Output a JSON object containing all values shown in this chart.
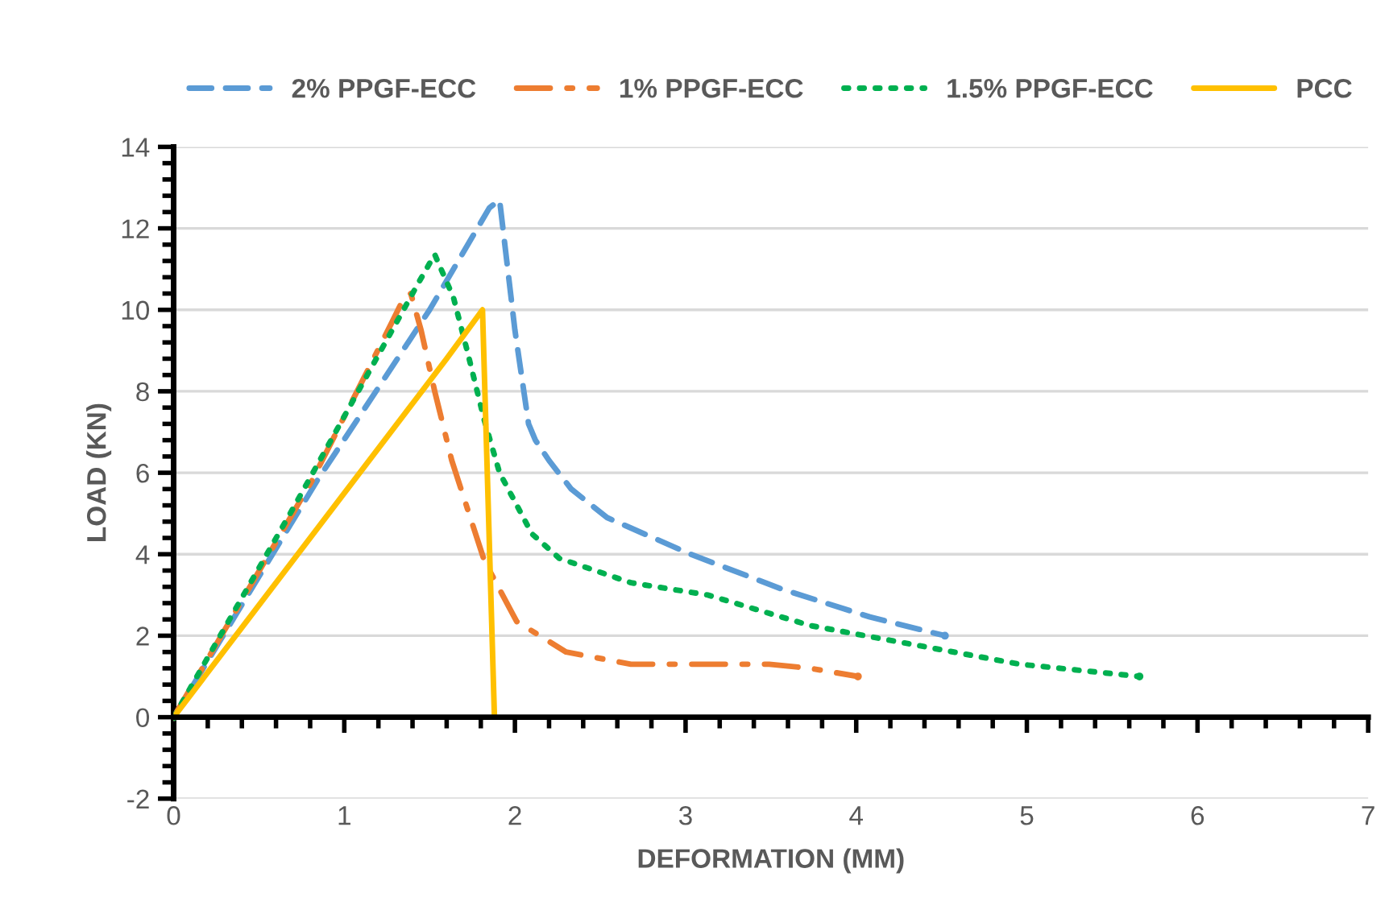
{
  "chart_data": {
    "type": "line",
    "xlabel": "DEFORMATION (MM)",
    "ylabel": "LOAD (KN)",
    "xlim": [
      0,
      7
    ],
    "xticks": [
      0,
      1,
      2,
      3,
      4,
      5,
      6,
      7
    ],
    "ylim": [
      -2,
      14
    ],
    "yticks": [
      -2,
      0,
      2,
      4,
      6,
      8,
      10,
      12,
      14
    ],
    "grid": "y",
    "legend": "top",
    "marker": "none",
    "series": [
      {
        "name": "2% PPGF-ECC",
        "color": "#5b9bd5",
        "line_style": "dashed",
        "x": [
          0,
          0.84,
          1.5,
          1.85,
          1.91,
          2.0,
          2.08,
          2.12,
          2.2,
          2.33,
          2.54,
          3.03,
          3.56,
          4.08,
          4.52
        ],
        "values": [
          0,
          5.8,
          10,
          12.5,
          12.7,
          9.5,
          7.2,
          6.8,
          6.3,
          5.6,
          4.9,
          4.0,
          3.15,
          2.46,
          2.0
        ]
      },
      {
        "name": "1% PPGF-ECC",
        "color": "#ed7d31",
        "line_style": "dashdot",
        "x": [
          0,
          0.81,
          1.28,
          1.35,
          1.39,
          1.45,
          1.53,
          1.63,
          1.82,
          2.01,
          2.3,
          2.68,
          3.07,
          3.49,
          3.73,
          4.01
        ],
        "values": [
          0,
          5.8,
          9.7,
          10.3,
          10.4,
          9.5,
          8.0,
          6.3,
          3.85,
          2.35,
          1.6,
          1.3,
          1.3,
          1.3,
          1.2,
          1.0
        ]
      },
      {
        "name": "1.5% PPGF-ECC",
        "color": "#00b050",
        "line_style": "dotted",
        "x": [
          0,
          0.71,
          1.44,
          1.53,
          1.64,
          1.72,
          1.82,
          1.91,
          2.1,
          2.26,
          2.68,
          3.13,
          3.73,
          4.26,
          4.96,
          5.66
        ],
        "values": [
          0,
          5.2,
          10.7,
          11.36,
          10.3,
          9.0,
          7.3,
          6.0,
          4.5,
          3.9,
          3.3,
          3.0,
          2.25,
          1.84,
          1.3,
          1.0
        ]
      },
      {
        "name": "PCC",
        "color": "#ffc000",
        "line_style": "solid",
        "x": [
          0,
          1.6,
          1.81,
          1.88
        ],
        "values": [
          0,
          8.8,
          10.0,
          0
        ]
      }
    ]
  }
}
